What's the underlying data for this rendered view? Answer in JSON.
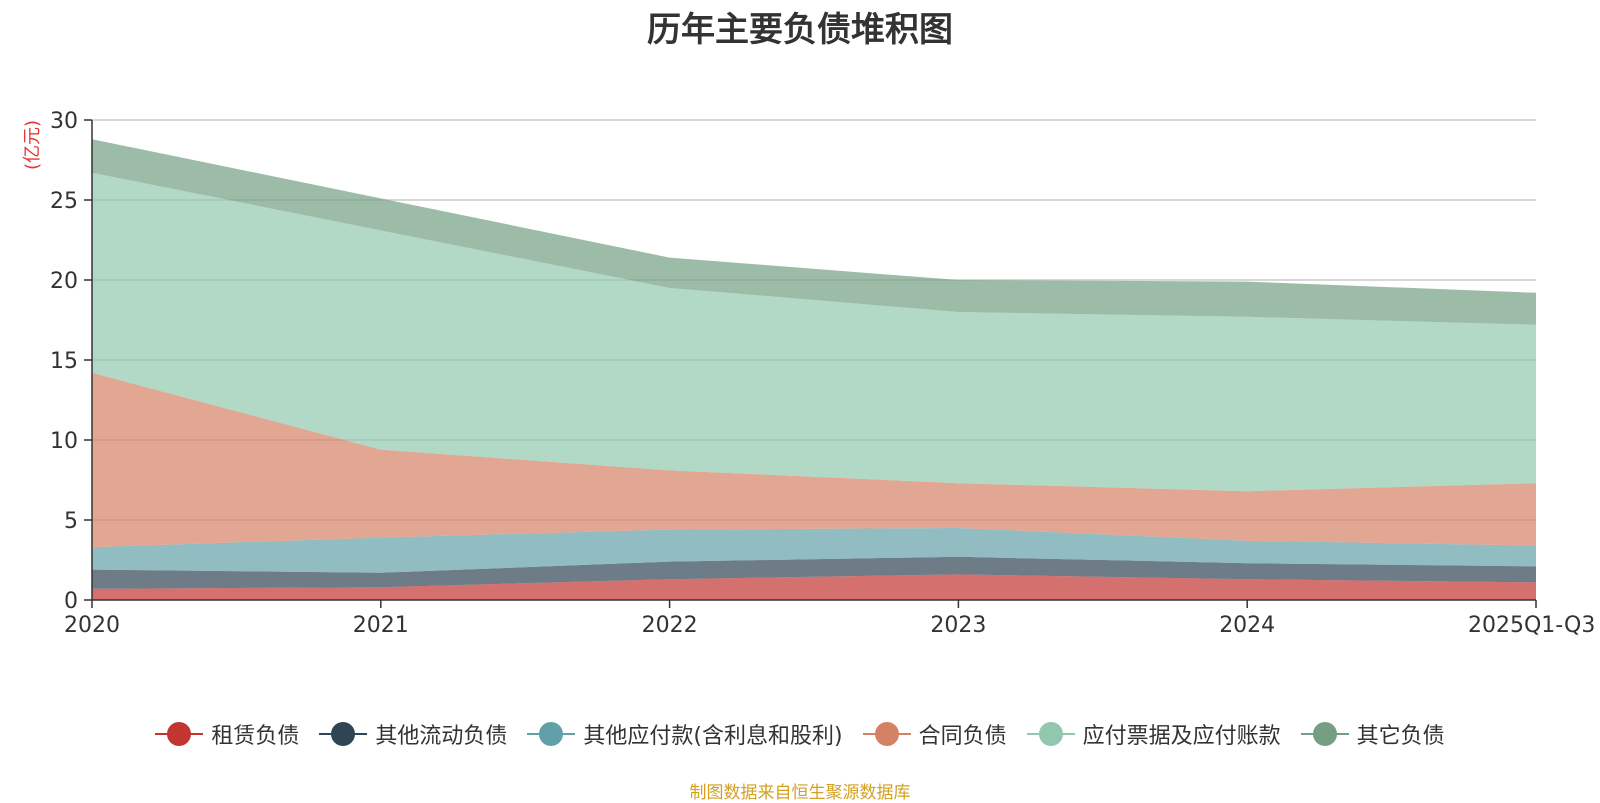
{
  "chart_data": {
    "type": "area",
    "title": "历年主要负债堆积图",
    "ylabel": "(亿元)",
    "xlabel": "",
    "ylim": [
      0,
      30
    ],
    "yticks": [
      "0",
      "5",
      "10",
      "15",
      "20",
      "25",
      "30"
    ],
    "grid": true,
    "stacked": true,
    "categories": [
      "2020",
      "2021",
      "2022",
      "2023",
      "2024",
      "2025Q1-Q3"
    ],
    "series": [
      {
        "name": "租赁负债",
        "color": "#c23531",
        "values": [
          0.7,
          0.8,
          1.3,
          1.6,
          1.3,
          1.1
        ]
      },
      {
        "name": "其他流动负债",
        "color": "#2f4554",
        "values": [
          1.2,
          0.9,
          1.1,
          1.1,
          1.0,
          1.0
        ]
      },
      {
        "name": "其他应付款(含利息和股利)",
        "color": "#61a0a8",
        "values": [
          1.4,
          2.2,
          2.0,
          1.8,
          1.4,
          1.3
        ]
      },
      {
        "name": "合同负债",
        "color": "#d48265",
        "values": [
          10.9,
          5.5,
          3.7,
          2.8,
          3.1,
          3.9
        ]
      },
      {
        "name": "应付票据及应付账款",
        "color": "#91c7ae",
        "values": [
          12.5,
          13.7,
          11.4,
          10.7,
          10.9,
          9.9
        ]
      },
      {
        "name": "其它负债",
        "color": "#749f83",
        "values": [
          2.1,
          2.0,
          1.9,
          2.0,
          2.2,
          2.0
        ]
      }
    ]
  },
  "footer": {
    "source": "制图数据来自恒生聚源数据库"
  }
}
